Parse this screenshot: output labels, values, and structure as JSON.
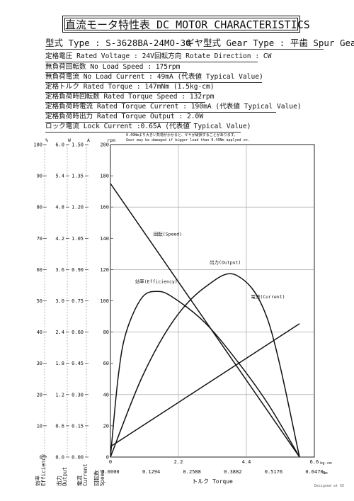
{
  "header": {
    "title": "直流モータ特性表 DC MOTOR CHARACTERISTICS",
    "model_line": "型式 Type : S-3628BA-24MO-30",
    "gear_line": "ギヤ型式 Gear Type : 平歯 Spur Gear",
    "rated_voltage": "定格電圧 Rated Voltage : 24V",
    "rotate_direction": "回転方向 Rotate Direction : CW",
    "no_load_speed": "無負荷回転数 No Load Speed : 175rpm",
    "no_load_current": "無負荷電流 No Load Current : 49mA (代表値 Typical Value)",
    "rated_torque": "定格トルク Rated Torque : 147mNm (1.5kg-cm)",
    "rated_torque_speed": "定格負荷時回転数 Rated Torque Speed : 132rpm",
    "rated_torque_current": "定格負荷時電流 Rated Torque Current : 190mA (代表値 Typical Value)",
    "rated_torque_output": "定格負荷時出力 Rated Torque Output : 2.0W",
    "lock_current": "ロック電流 Lock Current :0.65A (代表値 Typical Value)"
  },
  "footer": {
    "designed": "Designed at XX"
  },
  "chart_data": {
    "type": "line",
    "notes": [
      "0.49Nmより大きい負荷がかかると、ギヤが破損することがあります。",
      "Gear may be damaged if bigger load than 0.49Nm applyed on."
    ],
    "x_axis": {
      "kgcm_unit": "kg-cm",
      "kgcm_ticks": [
        "0",
        "2.2",
        "4.4",
        "6.6"
      ],
      "nm_unit": "Nm",
      "nm_ticks": [
        "0.0000",
        "0.1294",
        "0.2588",
        "0.3882",
        "0.5176",
        "0.6470"
      ],
      "xlabel": "トルク Torque",
      "xlim": [
        0,
        0.647
      ]
    },
    "y_axes": {
      "efficiency": {
        "unit": "%",
        "label": [
          "効率",
          "Efficiency"
        ],
        "ticks": [
          "0",
          "10",
          "20",
          "30",
          "40",
          "50",
          "60",
          "70",
          "80",
          "90",
          "100"
        ]
      },
      "output": {
        "unit": "W",
        "label": [
          "出力",
          "Output"
        ],
        "ticks": [
          "0.0",
          "0.6",
          "1.2",
          "1.8",
          "2.4",
          "3.0",
          "3.6",
          "4.2",
          "4.8",
          "5.4",
          "6.0"
        ]
      },
      "current": {
        "unit": "A",
        "label": [
          "電流",
          "Current"
        ],
        "ticks": [
          "0.00",
          "0.15",
          "0.30",
          "0.45",
          "0.60",
          "0.75",
          "0.90",
          "1.05",
          "1.20",
          "1.35",
          "1.50"
        ]
      },
      "speed": {
        "unit": "rpm",
        "label": [
          "回転数",
          "Speed"
        ],
        "ticks": [
          "0",
          "20",
          "40",
          "60",
          "80",
          "100",
          "120",
          "140",
          "160",
          "180",
          "200"
        ],
        "ylim": [
          0,
          200
        ]
      }
    },
    "series": [
      {
        "name": "回転(Speed)",
        "axis": "speed",
        "x": [
          0,
          0.6
        ],
        "y": [
          175,
          0
        ]
      },
      {
        "name": "電流(Current)",
        "axis": "current",
        "x": [
          0,
          0.6
        ],
        "y": [
          0.05,
          0.64
        ]
      },
      {
        "name": "出力(Output)",
        "axis": "output",
        "x": [
          0,
          0.1,
          0.2,
          0.3,
          0.4,
          0.5,
          0.6
        ],
        "y": [
          0,
          1.53,
          2.62,
          3.26,
          3.49,
          2.62,
          0
        ]
      },
      {
        "name": "効率(Efficiency)",
        "axis": "efficiency",
        "x": [
          0,
          0.025,
          0.05,
          0.1,
          0.15,
          0.2,
          0.3,
          0.4,
          0.5,
          0.6
        ],
        "y": [
          0,
          26,
          40,
          51,
          53,
          51,
          43,
          31,
          17,
          0
        ]
      }
    ],
    "grid": true
  }
}
